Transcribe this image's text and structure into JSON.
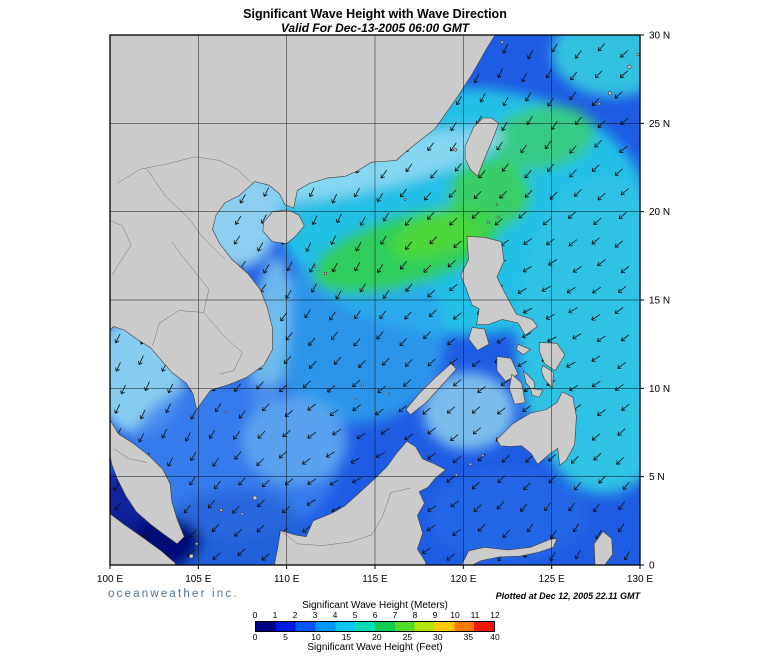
{
  "header": {
    "title": "Significant Wave Height with Wave Direction",
    "subtitle": "Valid For Dec-13-2005 06:00 GMT"
  },
  "map": {
    "lon_range": [
      100,
      130
    ],
    "lat_range": [
      0,
      30
    ],
    "grid_interval_deg": 5,
    "x_tick_labels": [
      "100 E",
      "105 E",
      "110 E",
      "115 E",
      "120 E",
      "125 E",
      "130 E"
    ],
    "y_tick_labels": [
      "30 N",
      "25 N",
      "20 N",
      "15 N",
      "10 N",
      "5 N",
      "0"
    ],
    "land_color": "#cbcbcb",
    "sea_base_color": "#1e5ce4",
    "arrow_color": "#101010",
    "arrow_direction": "southwest"
  },
  "legend": {
    "meters_label": "Significant Wave Height (Meters)",
    "feet_label": "Significant Wave Height (Feet)",
    "meters_ticks": [
      0,
      1,
      2,
      3,
      4,
      5,
      6,
      7,
      8,
      9,
      10,
      11,
      12
    ],
    "feet_ticks": [
      0,
      5,
      10,
      15,
      20,
      25,
      30,
      35,
      40
    ],
    "palette": [
      "#000082",
      "#0018e0",
      "#0055ff",
      "#0095ff",
      "#00c8f0",
      "#00dcb4",
      "#14cc50",
      "#50dc28",
      "#b4e400",
      "#ffc800",
      "#ff7800",
      "#f01800"
    ]
  },
  "footer": {
    "branding": "oceanweather inc.",
    "plotted": "Plotted at Dec 12, 2005 22.11 GMT"
  }
}
